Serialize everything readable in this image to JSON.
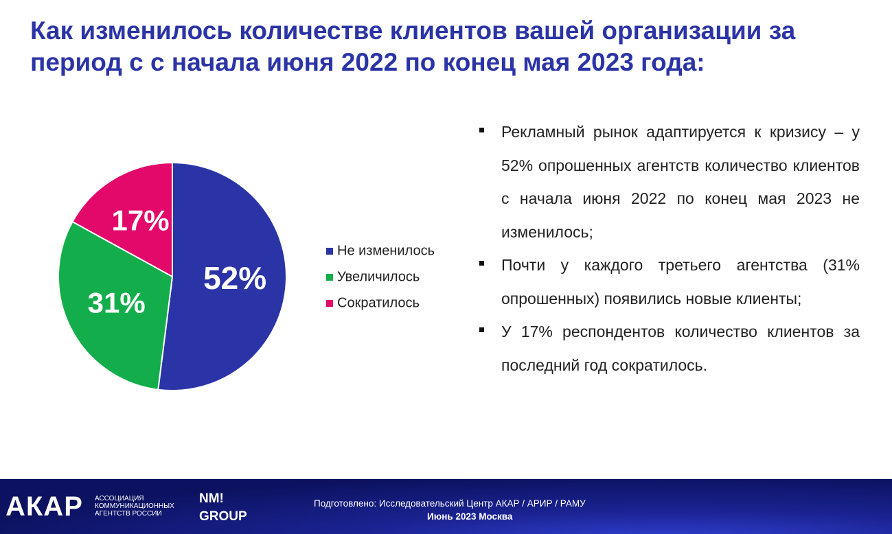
{
  "chart_data": {
    "type": "pie",
    "title": "Как изменилось количестве клиентов вашей организации за период с с начала июня 2022 по конец мая 2023 года:",
    "categories": [
      "Не изменилось",
      "Увеличилось",
      "Сократилось"
    ],
    "values": [
      52,
      31,
      17
    ],
    "value_labels": [
      "52%",
      "31%",
      "17%"
    ],
    "colors": [
      "#2b34a6",
      "#13ae4b",
      "#e2096a"
    ]
  },
  "bullets": [
    "Рекламный рынок адаптируется к кризису – у 52% опрошенных агентств количество клиентов с начала июня 2022 по конец мая 2023 не изменилось;",
    "Почти у каждого третьего агентства (31% опрошенных) появились новые клиенты;",
    "У 17% респондентов количество клиентов за последний год сократилось."
  ],
  "footer": {
    "logo": "АКАР",
    "association": [
      "АССОЦИАЦИЯ",
      "КОММУНИКАЦИОННЫХ",
      "АГЕНТСТВ РОССИИ"
    ],
    "partner": [
      "NM!",
      "GROUP"
    ],
    "prepared": "Подготовлено: Исследовательский Центр АКАР / АРИР / РАМУ",
    "date": "Июнь 2023 Москва"
  }
}
